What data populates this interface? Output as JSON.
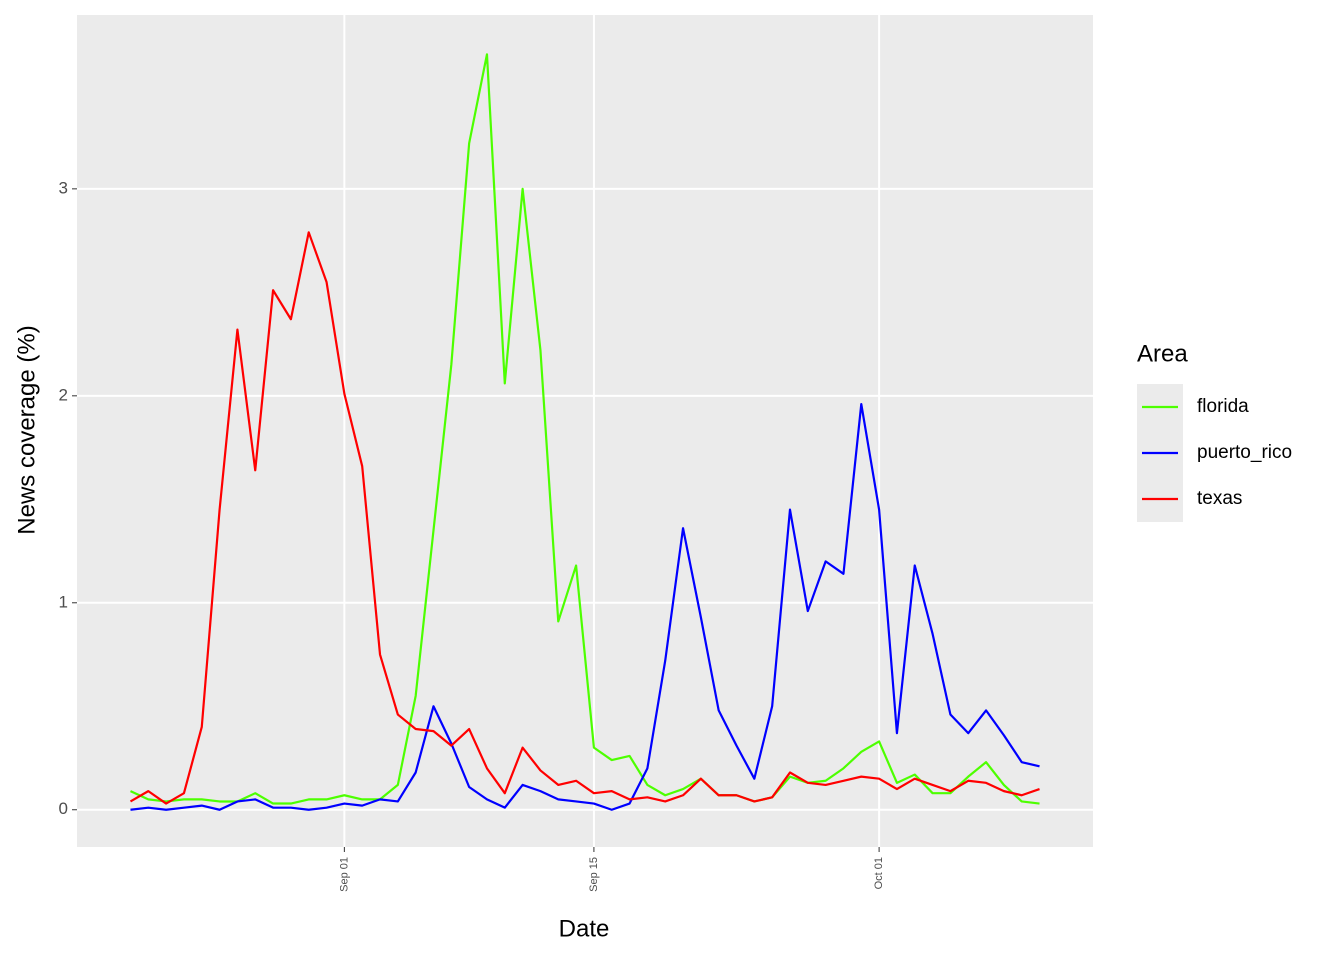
{
  "chart_data": {
    "type": "line",
    "x_label": "Date",
    "y_label": "News coverage (%)",
    "legend_title": "Area",
    "legend_position": "right",
    "grid": true,
    "x": [
      "Aug 20",
      "Aug 21",
      "Aug 22",
      "Aug 23",
      "Aug 24",
      "Aug 25",
      "Aug 26",
      "Aug 27",
      "Aug 28",
      "Aug 29",
      "Aug 30",
      "Aug 31",
      "Sep 01",
      "Sep 02",
      "Sep 03",
      "Sep 04",
      "Sep 05",
      "Sep 06",
      "Sep 07",
      "Sep 08",
      "Sep 09",
      "Sep 10",
      "Sep 11",
      "Sep 12",
      "Sep 13",
      "Sep 14",
      "Sep 15",
      "Sep 16",
      "Sep 17",
      "Sep 18",
      "Sep 19",
      "Sep 20",
      "Sep 21",
      "Sep 22",
      "Sep 23",
      "Sep 24",
      "Sep 25",
      "Sep 26",
      "Sep 27",
      "Sep 28",
      "Sep 29",
      "Sep 30",
      "Oct 01",
      "Oct 02",
      "Oct 03",
      "Oct 04",
      "Oct 05",
      "Oct 06",
      "Oct 07",
      "Oct 08",
      "Oct 09",
      "Oct 10"
    ],
    "xlim": [
      "Aug 17",
      "Oct 13"
    ],
    "xticks": [
      "Sep 01",
      "Sep 15",
      "Oct 01"
    ],
    "ylim": [
      -0.18,
      3.84
    ],
    "yticks": [
      0,
      1,
      2,
      3
    ],
    "series": [
      {
        "name": "florida",
        "color": "#4dff00",
        "values": [
          0.09,
          0.05,
          0.04,
          0.05,
          0.05,
          0.04,
          0.04,
          0.08,
          0.03,
          0.03,
          0.05,
          0.05,
          0.07,
          0.05,
          0.05,
          0.12,
          0.55,
          1.35,
          2.15,
          3.22,
          3.65,
          2.06,
          3.0,
          2.22,
          0.91,
          1.18,
          0.3,
          0.24,
          0.26,
          0.12,
          0.07,
          0.1,
          0.15,
          0.07,
          0.07,
          0.04,
          0.06,
          0.16,
          0.13,
          0.14,
          0.2,
          0.28,
          0.33,
          0.13,
          0.17,
          0.08,
          0.08,
          0.16,
          0.23,
          0.12,
          0.04,
          0.03
        ]
      },
      {
        "name": "puerto_rico",
        "color": "#0000ff",
        "values": [
          0.0,
          0.01,
          0.0,
          0.01,
          0.02,
          0.0,
          0.04,
          0.05,
          0.01,
          0.01,
          0.0,
          0.01,
          0.03,
          0.02,
          0.05,
          0.04,
          0.18,
          0.5,
          0.32,
          0.11,
          0.05,
          0.01,
          0.12,
          0.09,
          0.05,
          0.04,
          0.03,
          0.0,
          0.03,
          0.2,
          0.72,
          1.36,
          0.93,
          0.48,
          0.31,
          0.15,
          0.5,
          1.45,
          0.96,
          1.2,
          1.14,
          1.96,
          1.45,
          0.37,
          1.18,
          0.85,
          0.46,
          0.37,
          0.48,
          0.36,
          0.23,
          0.21
        ]
      },
      {
        "name": "texas",
        "color": "#ff0000",
        "values": [
          0.04,
          0.09,
          0.03,
          0.08,
          0.4,
          1.45,
          2.32,
          1.64,
          2.51,
          2.37,
          2.79,
          2.55,
          2.01,
          1.66,
          0.75,
          0.46,
          0.39,
          0.38,
          0.31,
          0.39,
          0.2,
          0.08,
          0.3,
          0.19,
          0.12,
          0.14,
          0.08,
          0.09,
          0.05,
          0.06,
          0.04,
          0.07,
          0.15,
          0.07,
          0.07,
          0.04,
          0.06,
          0.18,
          0.13,
          0.12,
          0.14,
          0.16,
          0.15,
          0.1,
          0.15,
          0.12,
          0.09,
          0.14,
          0.13,
          0.09,
          0.07,
          0.1
        ]
      }
    ]
  }
}
